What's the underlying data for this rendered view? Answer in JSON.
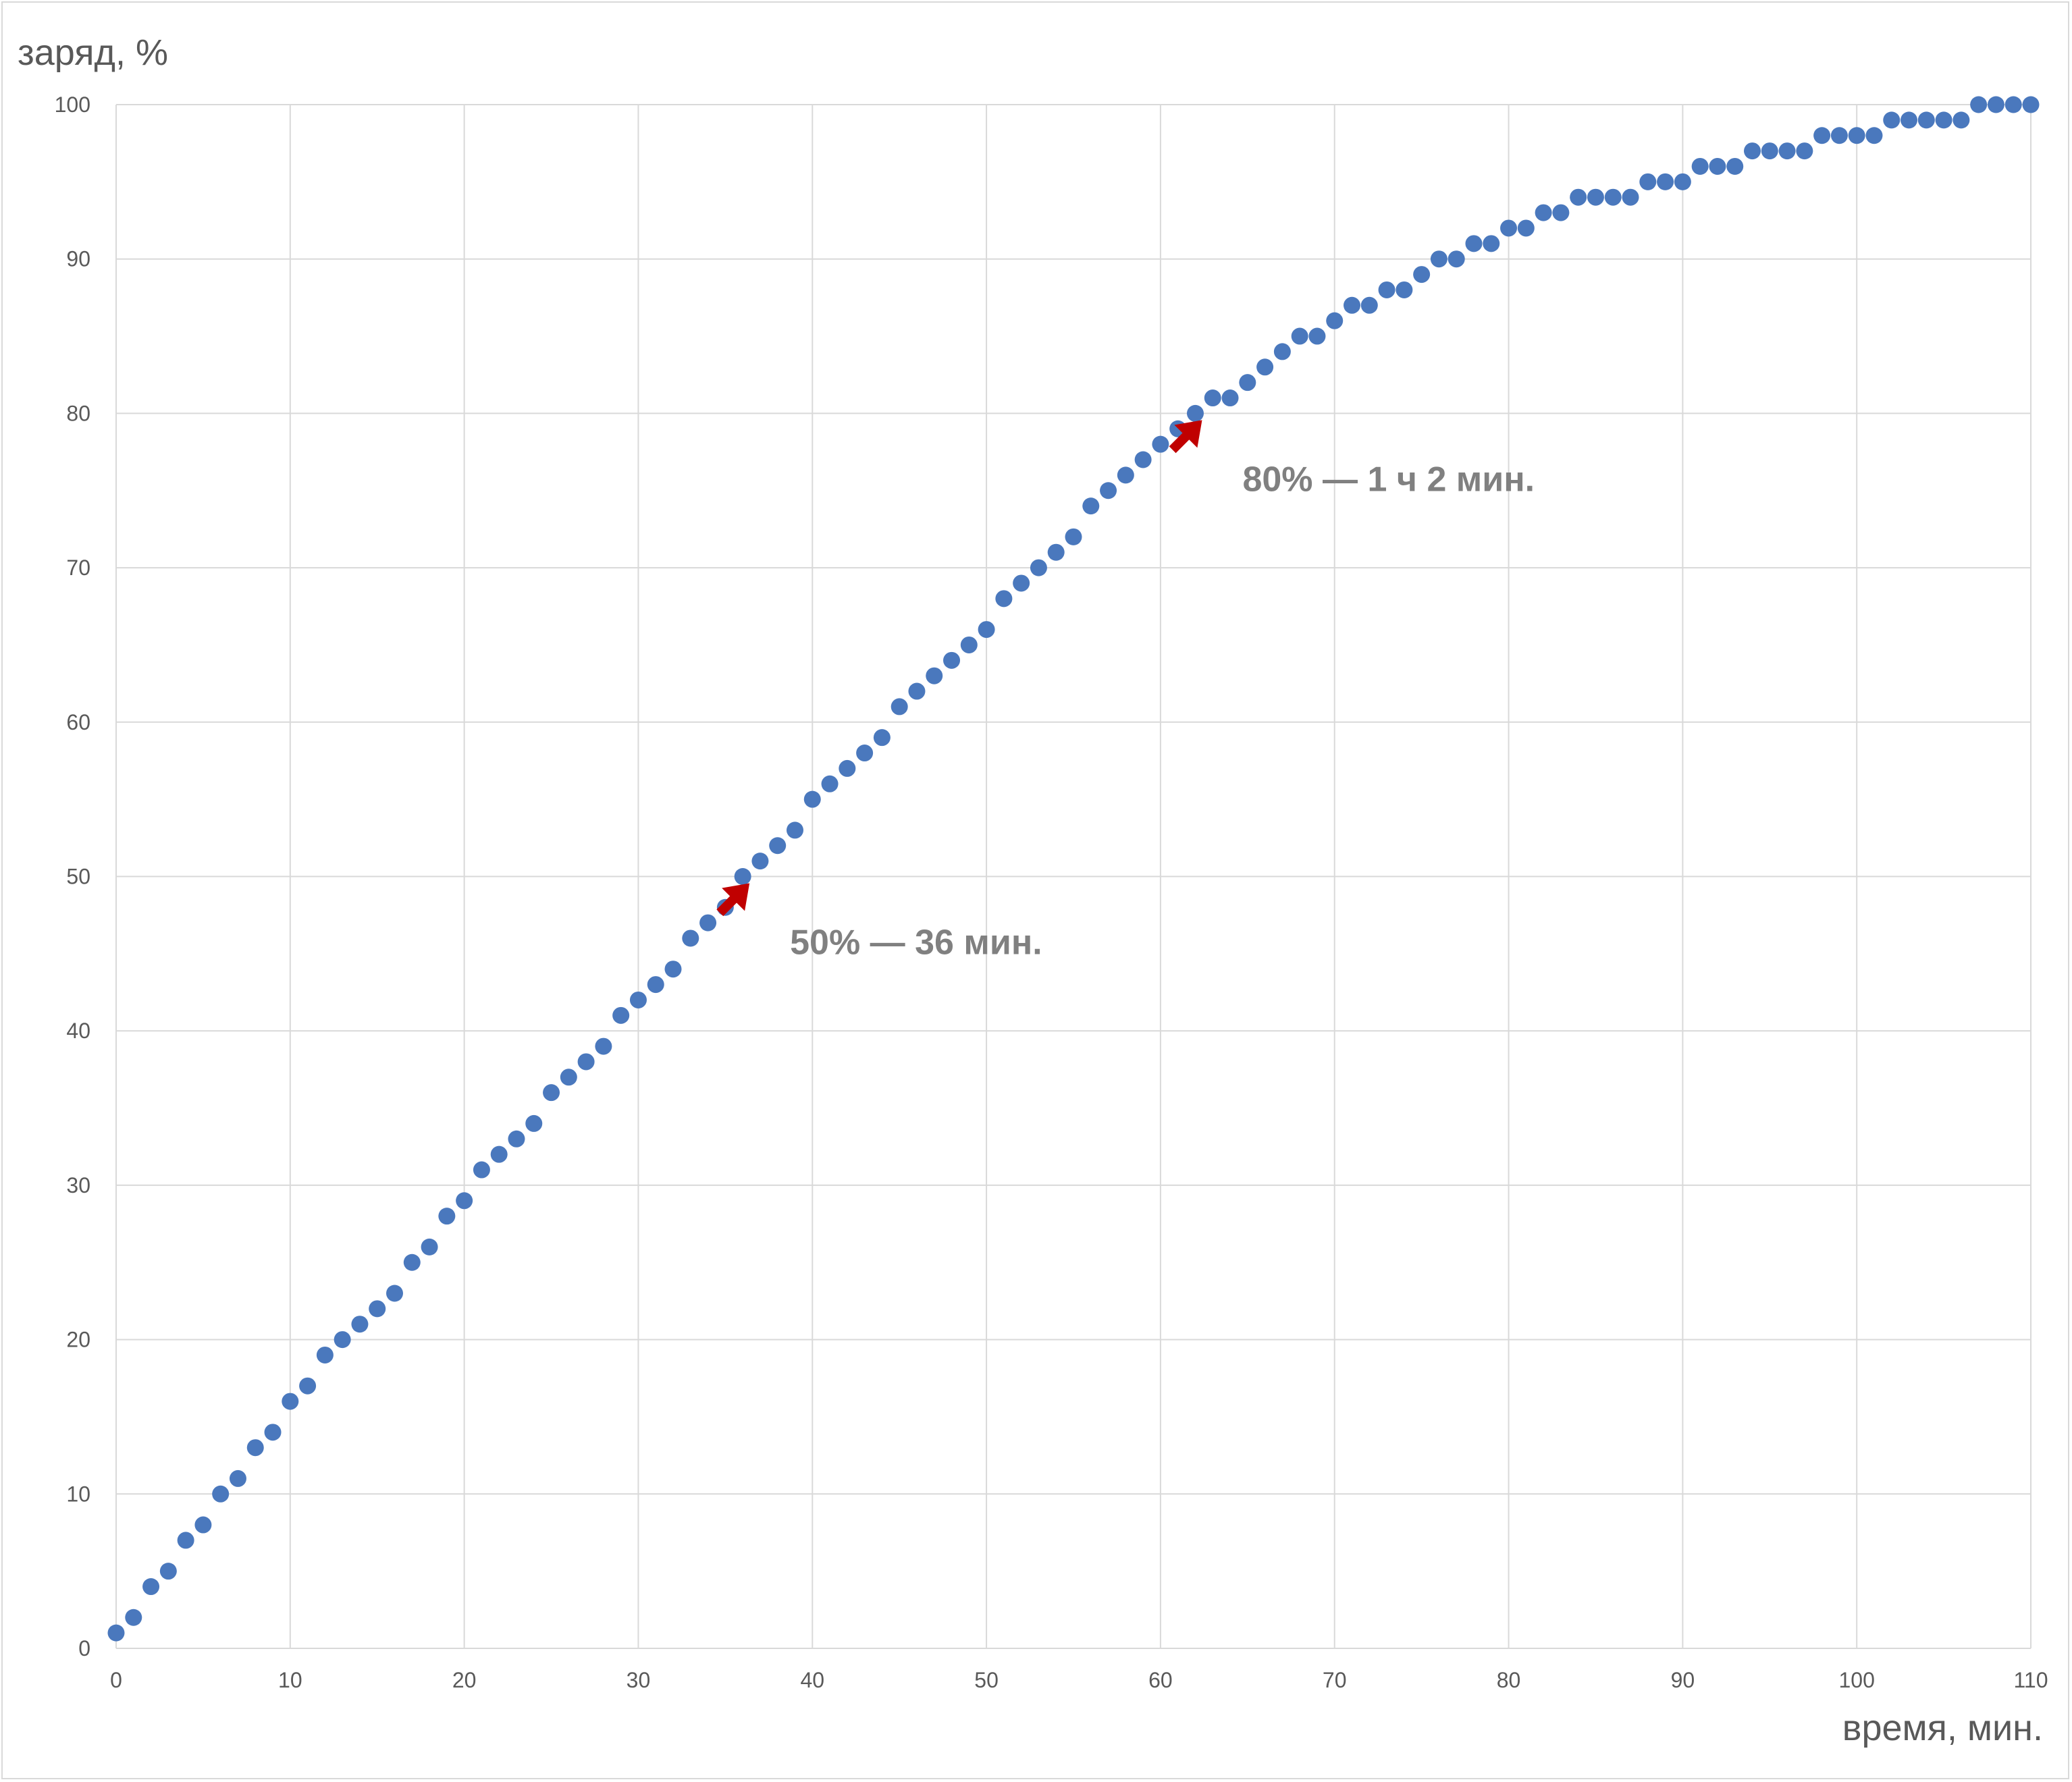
{
  "chart_data": {
    "type": "scatter",
    "xlabel": "время, мин.",
    "ylabel": "заряд, %",
    "xlim": [
      0,
      110
    ],
    "ylim": [
      0,
      100
    ],
    "x_ticks": [
      0,
      10,
      20,
      30,
      40,
      50,
      60,
      70,
      80,
      90,
      100,
      110
    ],
    "y_ticks": [
      0,
      10,
      20,
      30,
      40,
      50,
      60,
      70,
      80,
      90,
      100
    ],
    "grid": true,
    "point_color": "#4a78bd",
    "annotation_color": "#c00000",
    "x": [
      0,
      1,
      2,
      3,
      4,
      5,
      6,
      7,
      8,
      9,
      10,
      11,
      12,
      13,
      14,
      15,
      16,
      17,
      18,
      19,
      20,
      21,
      22,
      23,
      24,
      25,
      26,
      27,
      28,
      29,
      30,
      31,
      32,
      33,
      34,
      35,
      36,
      37,
      38,
      39,
      40,
      41,
      42,
      43,
      44,
      45,
      46,
      47,
      48,
      49,
      50,
      51,
      52,
      53,
      54,
      55,
      56,
      57,
      58,
      59,
      60,
      61,
      62,
      63,
      64,
      65,
      66,
      67,
      68,
      69,
      70,
      71,
      72,
      73,
      74,
      75,
      76,
      77,
      78,
      79,
      80,
      81,
      82,
      83,
      84,
      85,
      86,
      87,
      88,
      89,
      90,
      91,
      92,
      93,
      94,
      95,
      96,
      97,
      98,
      99,
      100,
      101,
      102,
      103,
      104,
      105,
      106,
      107,
      108,
      109,
      110
    ],
    "y": [
      1,
      2,
      4,
      5,
      7,
      8,
      10,
      11,
      13,
      14,
      16,
      17,
      19,
      20,
      21,
      22,
      23,
      25,
      26,
      28,
      29,
      31,
      32,
      33,
      34,
      36,
      37,
      38,
      39,
      41,
      42,
      43,
      44,
      46,
      47,
      48,
      50,
      51,
      52,
      53,
      55,
      56,
      57,
      58,
      59,
      61,
      62,
      63,
      64,
      65,
      66,
      68,
      69,
      70,
      71,
      72,
      74,
      75,
      76,
      77,
      78,
      79,
      80,
      81,
      81,
      82,
      83,
      84,
      85,
      85,
      86,
      87,
      87,
      88,
      88,
      89,
      90,
      90,
      91,
      91,
      92,
      92,
      93,
      93,
      94,
      94,
      94,
      94,
      95,
      95,
      95,
      96,
      96,
      96,
      97,
      97,
      97,
      97,
      98,
      98,
      98,
      98,
      99,
      99,
      99,
      99,
      99,
      100,
      100,
      100,
      100
    ],
    "annotations": [
      {
        "text": "50% — 36 мин.",
        "x": 36,
        "y": 50
      },
      {
        "text": "80% — 1 ч 2 мин.",
        "x": 62,
        "y": 80
      }
    ]
  }
}
